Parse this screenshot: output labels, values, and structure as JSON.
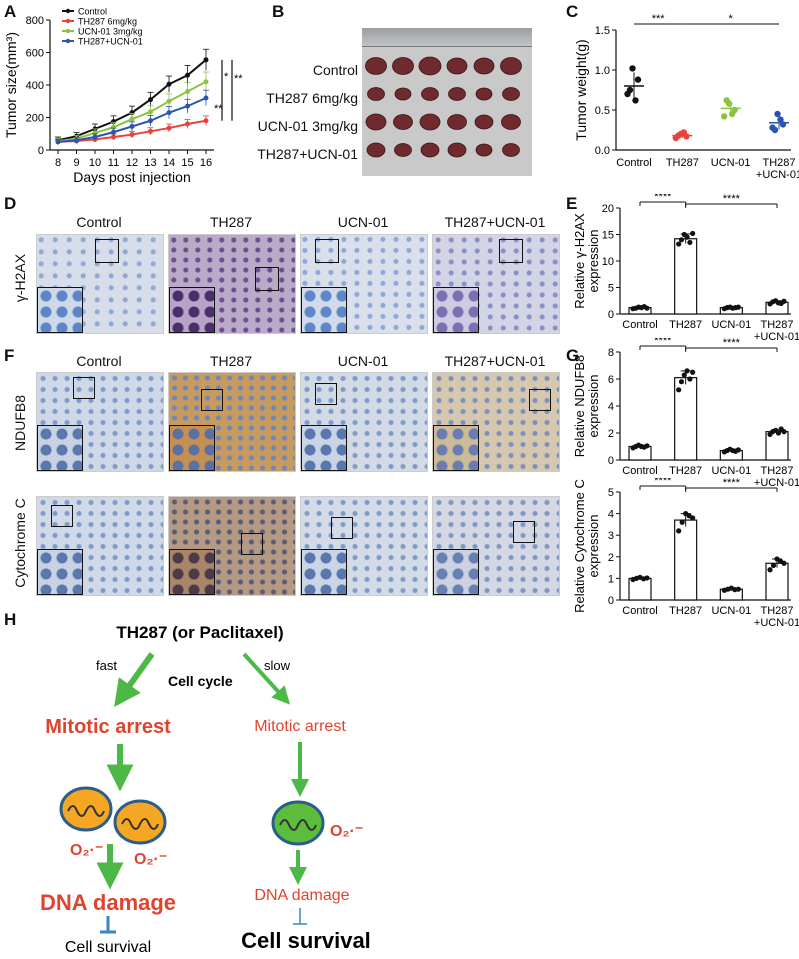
{
  "panels": {
    "A": "A",
    "B": "B",
    "C": "C",
    "D": "D",
    "E": "E",
    "F": "F",
    "G": "G",
    "H": "H"
  },
  "chart_data": [
    {
      "id": "A",
      "type": "line",
      "xlabel": "Days post injection",
      "ylabel": "Tumor size(mm³)",
      "x": [
        8,
        9,
        10,
        11,
        12,
        13,
        14,
        15,
        16
      ],
      "ylim": [
        0,
        800
      ],
      "yticks": [
        0,
        200,
        400,
        600,
        800
      ],
      "series": [
        {
          "name": "Control",
          "color": "#111111",
          "values": [
            60,
            85,
            130,
            175,
            230,
            310,
            405,
            460,
            555
          ],
          "err": [
            20,
            22,
            30,
            35,
            40,
            45,
            50,
            60,
            65
          ]
        },
        {
          "name": "TH287 6mg/kg",
          "color": "#e8423b",
          "values": [
            50,
            55,
            65,
            80,
            95,
            115,
            135,
            160,
            180
          ],
          "err": [
            12,
            14,
            16,
            18,
            20,
            22,
            25,
            28,
            30
          ]
        },
        {
          "name": "UCN-01 3mg/kg",
          "color": "#8ac43f",
          "values": [
            55,
            70,
            105,
            140,
            190,
            235,
            300,
            360,
            420
          ],
          "err": [
            18,
            20,
            25,
            30,
            35,
            40,
            45,
            55,
            60
          ]
        },
        {
          "name": "TH287+UCN-01",
          "color": "#2b55b5",
          "values": [
            50,
            60,
            80,
            110,
            145,
            180,
            230,
            270,
            320
          ],
          "err": [
            15,
            18,
            20,
            25,
            28,
            32,
            38,
            42,
            48
          ]
        }
      ],
      "significance": [
        "*",
        "**",
        "**"
      ]
    },
    {
      "id": "C",
      "type": "scatter",
      "ylabel": "Tumor weight(g)",
      "categories": [
        "Control",
        "TH287",
        "UCN-01",
        "TH287\n+UCN-01"
      ],
      "ylim": [
        0,
        1.5
      ],
      "yticks": [
        "0.0",
        "0.5",
        "1.0",
        "1.5"
      ],
      "colors": [
        "#111111",
        "#e8423b",
        "#8ac43f",
        "#2b55b5"
      ],
      "points": [
        [
          1.02,
          0.88,
          0.7,
          0.62,
          0.75
        ],
        [
          0.2,
          0.17,
          0.15,
          0.22,
          0.18
        ],
        [
          0.58,
          0.5,
          0.42,
          0.45,
          0.62
        ],
        [
          0.45,
          0.32,
          0.28,
          0.38,
          0.25
        ]
      ],
      "means": [
        0.8,
        0.18,
        0.52,
        0.34
      ],
      "sd": [
        0.17,
        0.03,
        0.09,
        0.08
      ],
      "significance": [
        {
          "from": 0,
          "to": 1,
          "label": "***"
        },
        {
          "from": 1,
          "to": 3,
          "label": "*"
        }
      ]
    },
    {
      "id": "E",
      "type": "bar",
      "ylabel": "Relative γ-H2AX expression",
      "categories": [
        "Control",
        "TH287",
        "UCN-01",
        "TH287\n+UCN-01"
      ],
      "values": [
        1.2,
        14.2,
        1.2,
        2.2
      ],
      "err": [
        0.2,
        0.9,
        0.15,
        0.3
      ],
      "ylim": [
        0,
        20
      ],
      "yticks": [
        "0",
        "5",
        "10",
        "15",
        "20"
      ],
      "points": [
        [
          1.0,
          1.1,
          1.3,
          1.2,
          1.4,
          1.1
        ],
        [
          13.2,
          14.0,
          15.0,
          14.5,
          13.5,
          15.2
        ],
        [
          1.0,
          1.2,
          1.3,
          1.1,
          1.2,
          1.3
        ],
        [
          1.9,
          2.3,
          2.5,
          2.1,
          2.0,
          2.4
        ]
      ],
      "significance": [
        {
          "from": 0,
          "to": 1,
          "label": "****"
        },
        {
          "from": 1,
          "to": 3,
          "label": "****"
        }
      ]
    },
    {
      "id": "G1",
      "type": "bar",
      "ylabel": "Relative NDUFB8 expression",
      "categories": [
        "Control",
        "TH287",
        "UCN-01",
        "TH287\n+UCN-01"
      ],
      "values": [
        1.0,
        6.1,
        0.7,
        2.1
      ],
      "err": [
        0.1,
        0.5,
        0.1,
        0.15
      ],
      "ylim": [
        0,
        8
      ],
      "yticks": [
        "0",
        "2",
        "4",
        "6",
        "8"
      ],
      "points": [
        [
          0.9,
          1.0,
          1.1,
          1.0,
          0.95,
          1.05
        ],
        [
          5.2,
          5.8,
          6.3,
          6.6,
          6.0,
          6.5
        ],
        [
          0.6,
          0.7,
          0.8,
          0.7,
          0.65,
          0.75
        ],
        [
          1.9,
          2.1,
          2.2,
          2.0,
          2.3,
          2.1
        ]
      ],
      "significance": [
        {
          "from": 0,
          "to": 1,
          "label": "****"
        },
        {
          "from": 1,
          "to": 3,
          "label": "****"
        }
      ]
    },
    {
      "id": "G2",
      "type": "bar",
      "ylabel": "Relative Cytochrome C expression",
      "categories": [
        "Control",
        "TH287",
        "UCN-01",
        "TH287\n+UCN-01"
      ],
      "values": [
        1.0,
        3.7,
        0.5,
        1.7
      ],
      "err": [
        0.05,
        0.3,
        0.05,
        0.2
      ],
      "ylim": [
        0,
        5
      ],
      "yticks": [
        "0",
        "1",
        "2",
        "3",
        "4",
        "5"
      ],
      "points": [
        [
          0.95,
          1.0,
          1.05,
          0.98,
          1.02
        ],
        [
          3.2,
          3.6,
          4.0,
          3.9,
          3.8
        ],
        [
          0.45,
          0.5,
          0.55,
          0.48,
          0.5
        ],
        [
          1.4,
          1.6,
          1.9,
          1.8,
          1.7
        ]
      ],
      "significance": [
        {
          "from": 0,
          "to": 1,
          "label": "****"
        },
        {
          "from": 1,
          "to": 3,
          "label": "****"
        }
      ]
    }
  ],
  "panelB": {
    "rows": [
      "Control",
      "TH287 6mg/kg",
      "UCN-01 3mg/kg",
      "TH287+UCN-01"
    ]
  },
  "panelD": {
    "columns": [
      "Control",
      "TH287",
      "UCN-01",
      "TH287+UCN-01"
    ],
    "row_label": "γ-H2AX"
  },
  "panelF": {
    "columns": [
      "Control",
      "TH287",
      "UCN-01",
      "TH287+UCN-01"
    ],
    "row_labels": [
      "NDUFB8",
      "Cytochrome C"
    ]
  },
  "panelH": {
    "top": "TH287 (or Paclitaxel)",
    "fast": "fast",
    "slow": "slow",
    "cell_cycle": "Cell cycle",
    "left_arrest": "Mitotic arrest",
    "right_arrest": "Mitotic arrest",
    "ros": "O₂·⁻",
    "left_damage": "DNA damage",
    "right_damage": "DNA damage",
    "left_survival": "Cell survival",
    "right_survival": "Cell survival",
    "colors": {
      "arrow": "#4cb848",
      "red": "#e0442e",
      "inhibit": "#3a86c8",
      "mito_orange": "#f5a623",
      "mito_green": "#5bbd3b",
      "mito_border": "#2b5d8a"
    }
  }
}
